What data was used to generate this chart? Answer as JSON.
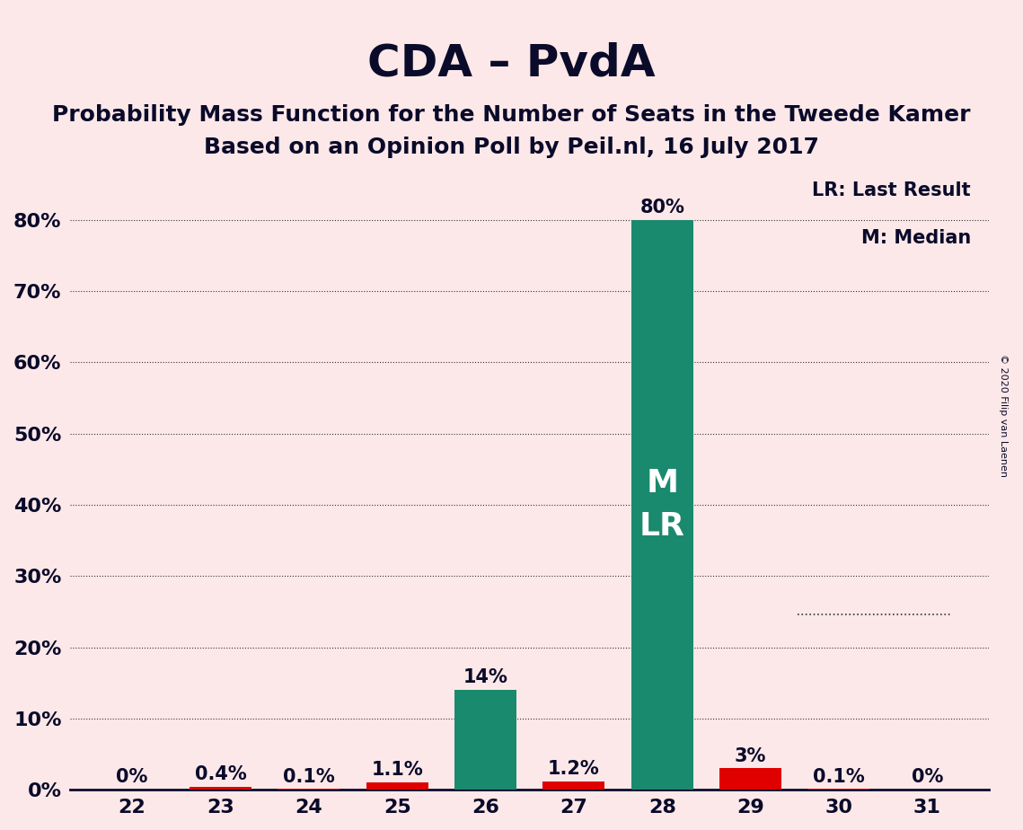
{
  "title": "CDA – PvdA",
  "subtitle1": "Probability Mass Function for the Number of Seats in the Tweede Kamer",
  "subtitle2": "Based on an Opinion Poll by Peil.nl, 16 July 2017",
  "copyright": "© 2020 Filip van Laenen",
  "seats": [
    22,
    23,
    24,
    25,
    26,
    27,
    28,
    29,
    30,
    31
  ],
  "pmf_values": [
    0.0,
    0.4,
    0.1,
    1.1,
    14.0,
    1.2,
    80.0,
    3.0,
    0.1,
    0.0
  ],
  "lr_values": [
    0.0,
    0.4,
    0.1,
    1.1,
    0.0,
    1.2,
    0.0,
    3.0,
    0.1,
    0.0
  ],
  "median_seat": 28,
  "lr_seat": 28,
  "pmf_color": "#1a8a6e",
  "lr_color": "#e00000",
  "background_color": "#fce8e8",
  "title_color": "#0a0a2a",
  "axis_color": "#0a0a2a",
  "grid_color": "#333333",
  "bar_width": 0.7,
  "ylim": [
    0,
    88
  ],
  "yticks": [
    0,
    10,
    20,
    30,
    40,
    50,
    60,
    70,
    80
  ],
  "legend_lr": "LR: Last Result",
  "legend_m": "M: Median",
  "label_fontsize": 15,
  "title_fontsize": 36,
  "subtitle_fontsize": 18
}
